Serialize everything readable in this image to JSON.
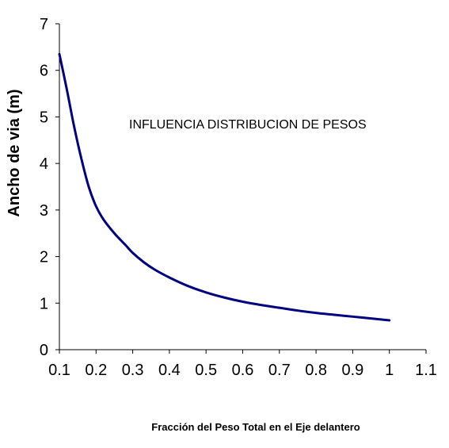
{
  "chart_data": {
    "type": "line",
    "title": "",
    "annotation": "INFLUENCIA DISTRIBUCION DE PESOS",
    "xlabel": "Fracción del Peso Total en el Eje delantero",
    "ylabel": "Ancho de via (m)",
    "xlim": [
      0.1,
      1.1
    ],
    "ylim": [
      0,
      7
    ],
    "xticks": [
      "0.1",
      "0.2",
      "0.3",
      "0.4",
      "0.5",
      "0.6",
      "0.7",
      "0.8",
      "0.9",
      "1",
      "1.1"
    ],
    "yticks": [
      "0",
      "1",
      "2",
      "3",
      "4",
      "5",
      "6",
      "7"
    ],
    "grid": false,
    "legend": "none",
    "series": [
      {
        "color": "#000080",
        "x": [
          0.1,
          0.12,
          0.14,
          0.16,
          0.18,
          0.2,
          0.22,
          0.25,
          0.28,
          0.3,
          0.33,
          0.36,
          0.4,
          0.45,
          0.5,
          0.55,
          0.6,
          0.65,
          0.7,
          0.75,
          0.8,
          0.85,
          0.9,
          0.95,
          1.0
        ],
        "y": [
          6.35,
          5.6,
          4.8,
          4.1,
          3.5,
          3.08,
          2.8,
          2.5,
          2.25,
          2.08,
          1.88,
          1.72,
          1.55,
          1.37,
          1.23,
          1.12,
          1.03,
          0.96,
          0.9,
          0.84,
          0.79,
          0.75,
          0.71,
          0.67,
          0.63
        ]
      }
    ]
  }
}
